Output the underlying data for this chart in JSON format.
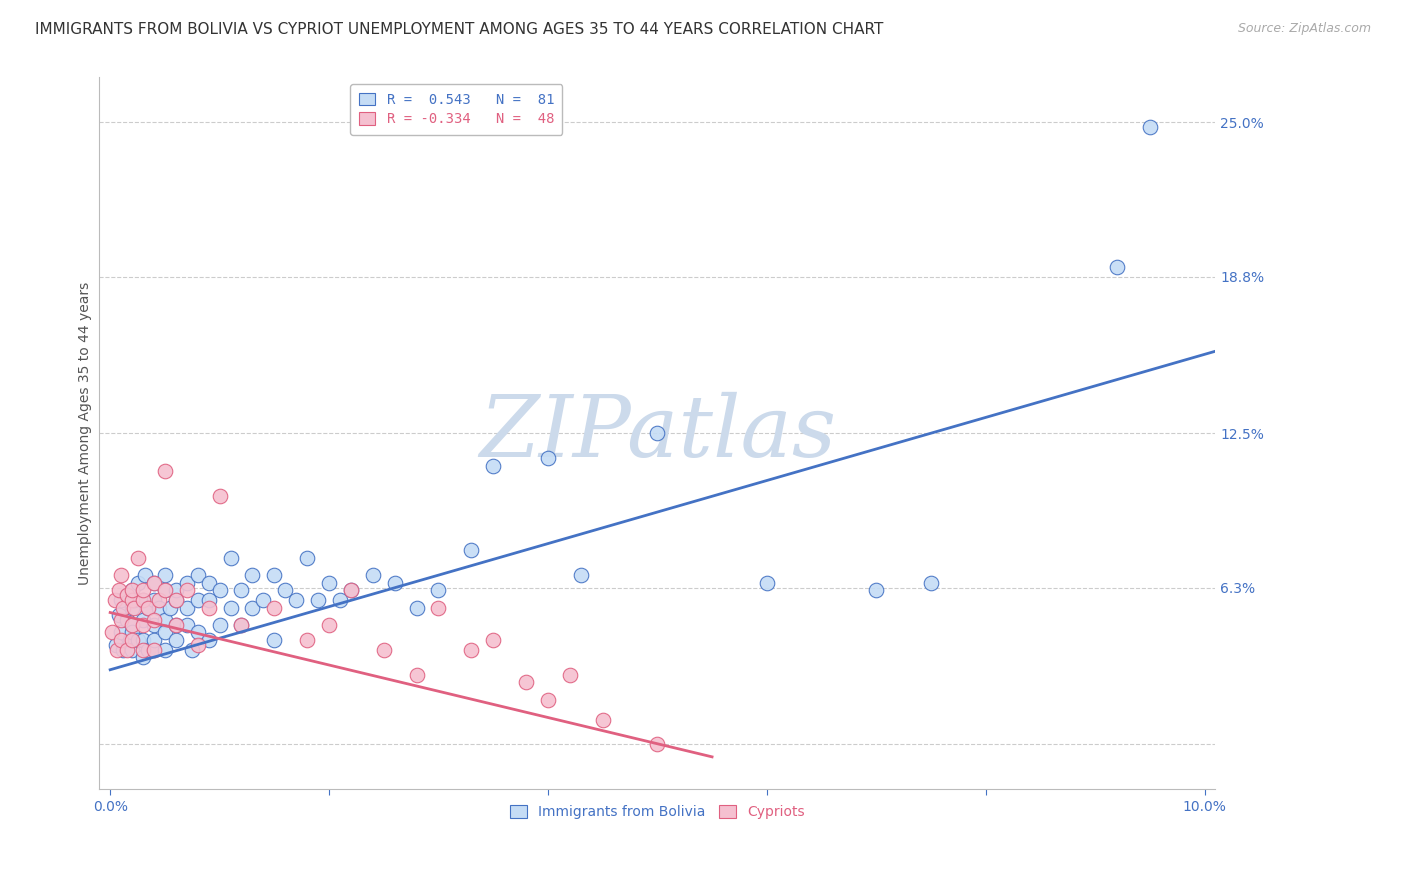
{
  "title": "IMMIGRANTS FROM BOLIVIA VS CYPRIOT UNEMPLOYMENT AMONG AGES 35 TO 44 YEARS CORRELATION CHART",
  "source": "Source: ZipAtlas.com",
  "ylabel": "Unemployment Among Ages 35 to 44 years",
  "xlim": [
    -0.001,
    0.101
  ],
  "ylim": [
    -0.018,
    0.268
  ],
  "yticks": [
    0.0,
    0.063,
    0.125,
    0.188,
    0.25
  ],
  "ytick_labels": [
    "",
    "6.3%",
    "12.5%",
    "18.8%",
    "25.0%"
  ],
  "xticks": [
    0.0,
    0.02,
    0.04,
    0.06,
    0.08,
    0.1
  ],
  "xtick_labels": [
    "0.0%",
    "",
    "",
    "",
    "",
    "10.0%"
  ],
  "blue_fill": "#c5dcf5",
  "blue_edge": "#4472c4",
  "pink_fill": "#f5c0d0",
  "pink_edge": "#e06080",
  "blue_line": "#4472c4",
  "pink_line": "#e06080",
  "legend_blue": "R =  0.543   N =  81",
  "legend_pink": "R = -0.334   N =  48",
  "watermark": "ZIPatlas",
  "watermark_color": "#ccdaeb",
  "blue_x": [
    0.0005,
    0.0008,
    0.001,
    0.001,
    0.0012,
    0.0015,
    0.0015,
    0.0018,
    0.002,
    0.002,
    0.002,
    0.002,
    0.002,
    0.0022,
    0.0025,
    0.0025,
    0.003,
    0.003,
    0.003,
    0.003,
    0.0032,
    0.0035,
    0.0035,
    0.004,
    0.004,
    0.004,
    0.004,
    0.004,
    0.0045,
    0.005,
    0.005,
    0.005,
    0.005,
    0.005,
    0.0055,
    0.006,
    0.006,
    0.006,
    0.006,
    0.007,
    0.007,
    0.007,
    0.0075,
    0.008,
    0.008,
    0.008,
    0.009,
    0.009,
    0.009,
    0.01,
    0.01,
    0.011,
    0.011,
    0.012,
    0.012,
    0.013,
    0.013,
    0.014,
    0.015,
    0.015,
    0.016,
    0.017,
    0.018,
    0.019,
    0.02,
    0.021,
    0.022,
    0.024,
    0.026,
    0.028,
    0.03,
    0.033,
    0.035,
    0.04,
    0.043,
    0.05,
    0.06,
    0.07,
    0.075,
    0.092,
    0.095
  ],
  "blue_y": [
    0.04,
    0.052,
    0.045,
    0.058,
    0.038,
    0.05,
    0.06,
    0.042,
    0.048,
    0.055,
    0.062,
    0.038,
    0.045,
    0.058,
    0.042,
    0.065,
    0.05,
    0.058,
    0.042,
    0.035,
    0.068,
    0.055,
    0.038,
    0.065,
    0.048,
    0.058,
    0.038,
    0.042,
    0.055,
    0.05,
    0.062,
    0.045,
    0.038,
    0.068,
    0.055,
    0.058,
    0.042,
    0.048,
    0.062,
    0.055,
    0.048,
    0.065,
    0.038,
    0.058,
    0.068,
    0.045,
    0.058,
    0.042,
    0.065,
    0.048,
    0.062,
    0.055,
    0.075,
    0.048,
    0.062,
    0.055,
    0.068,
    0.058,
    0.042,
    0.068,
    0.062,
    0.058,
    0.075,
    0.058,
    0.065,
    0.058,
    0.062,
    0.068,
    0.065,
    0.055,
    0.062,
    0.078,
    0.112,
    0.115,
    0.068,
    0.125,
    0.065,
    0.062,
    0.065,
    0.192,
    0.248
  ],
  "pink_x": [
    0.0002,
    0.0004,
    0.0006,
    0.0008,
    0.001,
    0.001,
    0.001,
    0.0012,
    0.0015,
    0.0015,
    0.002,
    0.002,
    0.002,
    0.002,
    0.0022,
    0.0025,
    0.003,
    0.003,
    0.003,
    0.003,
    0.0035,
    0.004,
    0.004,
    0.004,
    0.0045,
    0.005,
    0.005,
    0.006,
    0.006,
    0.007,
    0.008,
    0.009,
    0.01,
    0.012,
    0.015,
    0.018,
    0.02,
    0.022,
    0.025,
    0.028,
    0.03,
    0.033,
    0.035,
    0.038,
    0.04,
    0.042,
    0.045,
    0.05
  ],
  "pink_y": [
    0.045,
    0.058,
    0.038,
    0.062,
    0.05,
    0.068,
    0.042,
    0.055,
    0.06,
    0.038,
    0.048,
    0.058,
    0.062,
    0.042,
    0.055,
    0.075,
    0.048,
    0.058,
    0.062,
    0.038,
    0.055,
    0.05,
    0.065,
    0.038,
    0.058,
    0.062,
    0.11,
    0.048,
    0.058,
    0.062,
    0.04,
    0.055,
    0.1,
    0.048,
    0.055,
    0.042,
    0.048,
    0.062,
    0.038,
    0.028,
    0.055,
    0.038,
    0.042,
    0.025,
    0.018,
    0.028,
    0.01,
    0.0
  ],
  "blue_trend_x": [
    0.0,
    0.101
  ],
  "blue_trend_y": [
    0.03,
    0.158
  ],
  "pink_trend_x": [
    0.0,
    0.055
  ],
  "pink_trend_y": [
    0.053,
    -0.005
  ],
  "grid_color": "#cccccc",
  "bg_color": "#ffffff",
  "title_fontsize": 11,
  "axis_label_fontsize": 10,
  "tick_fontsize": 10,
  "legend_fontsize": 10
}
